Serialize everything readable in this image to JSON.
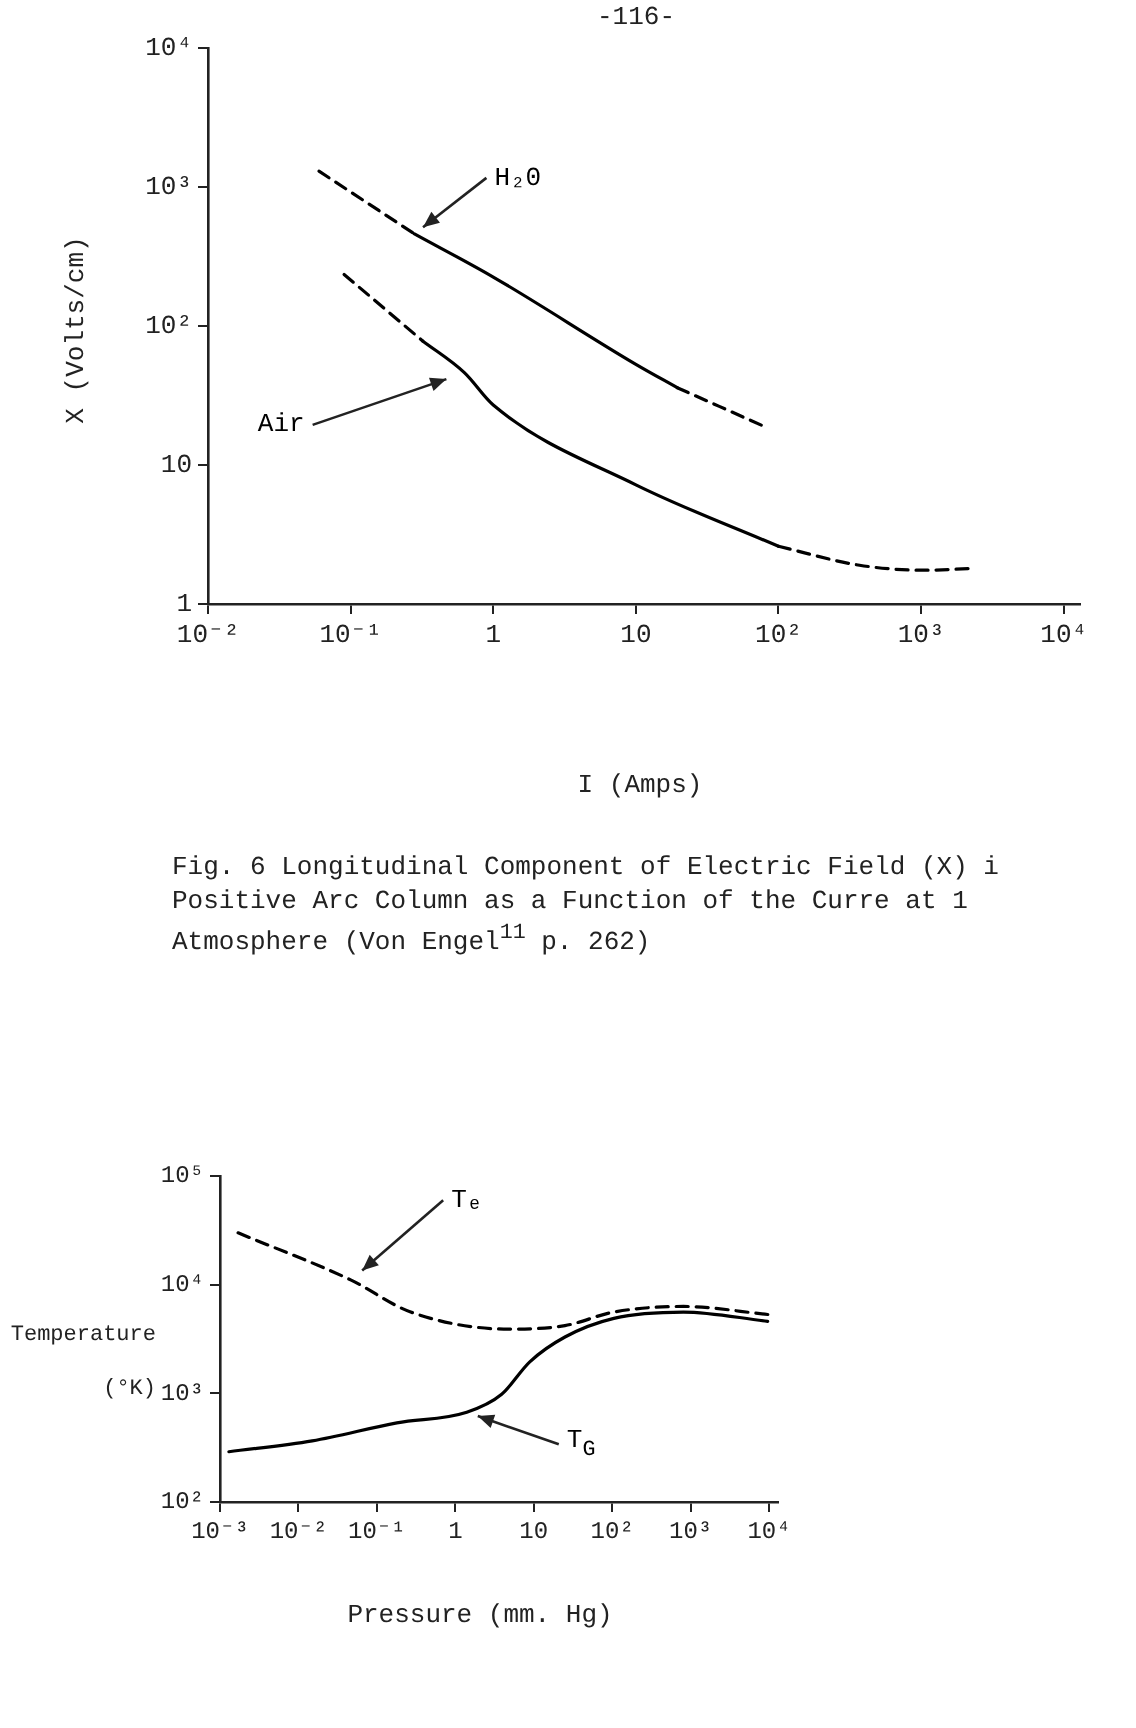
{
  "chart_data": [
    {
      "type": "line",
      "xlabel": "I (Amps)",
      "ylabel": "X (Volts/cm)",
      "log": "xy",
      "grid": false,
      "legend": false,
      "marker": "none",
      "xlim": [
        0.01,
        13000
      ],
      "ylim": [
        1,
        10000
      ],
      "xticks": [
        {
          "value": 0.01,
          "label": "10⁻²"
        },
        {
          "value": 0.1,
          "label": "10⁻¹"
        },
        {
          "value": 1,
          "label": "1"
        },
        {
          "value": 10,
          "label": "10"
        },
        {
          "value": 100,
          "label": "10²"
        },
        {
          "value": 1000,
          "label": "10³"
        },
        {
          "value": 10000,
          "label": "10⁴"
        }
      ],
      "yticks": [
        {
          "value": 1,
          "label": "1"
        },
        {
          "value": 10,
          "label": "10"
        },
        {
          "value": 100,
          "label": "10²"
        },
        {
          "value": 1000,
          "label": "10³"
        },
        {
          "value": 10000,
          "label": "10⁴"
        }
      ],
      "annotations": [
        "-116-",
        "Fig. 6  Longitudinal Component of Electric Field (X) i Positive Arc Column as a Function of the Curre at 1 Atmosphere (Von Engel$^{11}$ p. 262)"
      ],
      "series": [
        {
          "color": "#000000",
          "line_style": "dashed",
          "x": [
            0.06,
            0.28
          ],
          "values": [
            1300,
            460
          ]
        },
        {
          "name": "H₂0",
          "color": "#000000",
          "line_style": "solid",
          "x": [
            0.28,
            1,
            10,
            19.5
          ],
          "values": [
            460,
            225,
            53,
            36
          ]
        },
        {
          "color": "#000000",
          "line_style": "dashed",
          "x": [
            19.5,
            79
          ],
          "values": [
            36,
            19
          ]
        },
        {
          "color": "#000000",
          "line_style": "dashed",
          "x": [
            0.09,
            0.32
          ],
          "values": [
            235,
            78
          ]
        },
        {
          "name": "Air",
          "color": "#000000",
          "line_style": "solid",
          "x": [
            0.32,
            0.63,
            1,
            10,
            100
          ],
          "values": [
            78,
            46,
            27,
            7.2,
            2.6
          ]
        },
        {
          "color": "#000000",
          "line_style": "dashed",
          "x": [
            100,
            370,
            1050,
            2240
          ],
          "values": [
            2.6,
            1.9,
            1.75,
            1.8
          ]
        }
      ]
    },
    {
      "type": "line",
      "xlabel": "Pressure (mm. Hg)",
      "ylabel": "Temperature (°K)",
      "log": "xy",
      "grid": false,
      "legend": false,
      "marker": "none",
      "xlim": [
        0.001,
        13000
      ],
      "ylim": [
        100,
        100000
      ],
      "xticks": [
        {
          "value": 0.001,
          "label": "10⁻³"
        },
        {
          "value": 0.01,
          "label": "10⁻²"
        },
        {
          "value": 0.1,
          "label": "10⁻¹"
        },
        1,
        10,
        {
          "value": 100,
          "label": "10²"
        },
        {
          "value": 1000,
          "label": "10³"
        },
        {
          "value": 10000,
          "label": "10⁴"
        }
      ],
      "yticks": [
        {
          "value": 100,
          "label": "10²"
        },
        {
          "value": 1000,
          "label": "10³"
        },
        {
          "value": 10000,
          "label": "10⁴"
        },
        {
          "value": 100000,
          "label": "10⁵"
        }
      ],
      "series": [
        {
          "name": "Tₑ",
          "color": "#000000",
          "line_style": "dashed",
          "x": [
            0.0017,
            0.047,
            0.27,
            4.8,
            25,
            105,
            810,
            10000
          ],
          "values": [
            30000,
            11000,
            5600,
            3900,
            4200,
            5600,
            6300,
            5300
          ]
        },
        {
          "name": "T$_{G}$",
          "color": "#000000",
          "line_style": "solid",
          "x": [
            0.0013,
            0.015,
            0.18,
            1.4,
            3.9,
            8.9,
            25,
            105,
            810,
            9600
          ],
          "values": [
            290,
            365,
            535,
            670,
            980,
            1950,
            3300,
            4900,
            5600,
            4600
          ]
        }
      ]
    }
  ]
}
